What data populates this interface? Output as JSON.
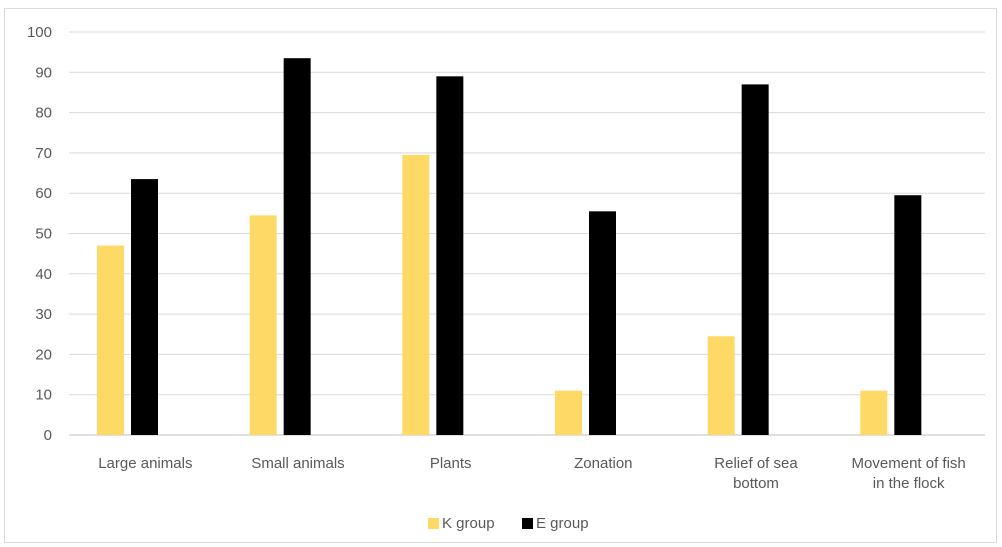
{
  "chart_data": {
    "type": "bar",
    "title": "",
    "xlabel": "",
    "ylabel": "",
    "ylim": [
      0,
      100
    ],
    "yticks": [
      "0",
      "10",
      "20",
      "30",
      "40",
      "50",
      "60",
      "70",
      "80",
      "90",
      "100"
    ],
    "grid": true,
    "legend_position": "bottom",
    "categories": [
      [
        "Large animals"
      ],
      [
        "Small animals"
      ],
      [
        "Plants"
      ],
      [
        "Zonation"
      ],
      [
        "Relief of sea",
        "bottom"
      ],
      [
        "Movement of fish",
        "in the flock"
      ]
    ],
    "series": [
      {
        "name": "K group",
        "color": "#ffd966",
        "values": [
          47,
          54.5,
          69.5,
          11,
          24.5,
          11
        ]
      },
      {
        "name": "E group",
        "color": "#000000",
        "values": [
          63.5,
          93.5,
          89,
          55.5,
          87,
          59.5
        ]
      }
    ]
  }
}
